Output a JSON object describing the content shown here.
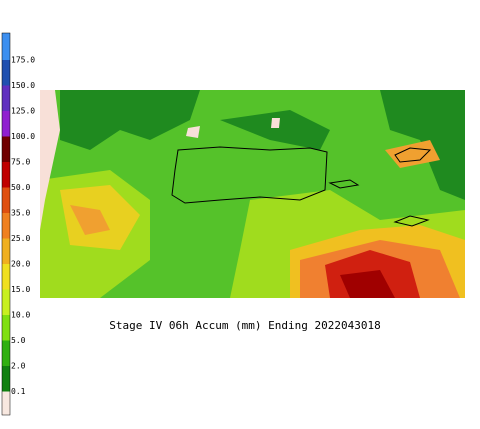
{
  "title": "Stage IV 06h Accum (mm) Ending 2022043018",
  "legend": {
    "labels": [
      "175.0",
      "150.0",
      "125.0",
      "100.0",
      "75.0",
      "50.0",
      "35.0",
      "25.0",
      "20.0",
      "15.0",
      "10.0",
      "5.0",
      "2.0",
      "0.1"
    ],
    "colors": [
      "#3c8ff0",
      "#2050b0",
      "#6030c0",
      "#9020d0",
      "#700000",
      "#c00000",
      "#e05010",
      "#f08020",
      "#f0b020",
      "#f0e020",
      "#c8f020",
      "#80e010",
      "#30b010",
      "#108010",
      "#f8e8e0"
    ]
  }
}
